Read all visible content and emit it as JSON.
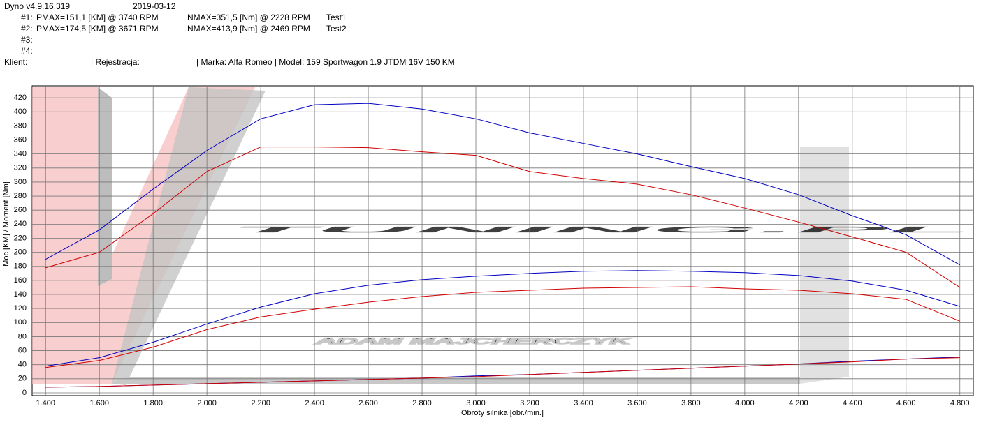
{
  "header": {
    "app": "Dyno v4.9.16.319",
    "date": "2019-03-12",
    "runs": [
      {
        "id": "#1:",
        "pmax": "PMAX=151,1 [KM] @ 3740 RPM",
        "nmax": "NMAX=351,5 [Nm] @ 2228 RPM",
        "test": "Test1"
      },
      {
        "id": "#2:",
        "pmax": "PMAX=174,5 [KM] @ 3671 RPM",
        "nmax": "NMAX=413,9 [Nm] @ 2469 RPM",
        "test": "Test2"
      },
      {
        "id": "#3:"
      },
      {
        "id": "#4:"
      }
    ],
    "client": "Klient:",
    "registration": "| Rejestracja:",
    "vehicle": "| Marka: Alfa Romeo | Model: 159 Sportwagon 1.9 JTDM 16V 150 KM"
  },
  "chart_data": {
    "type": "line",
    "x_label": "Obroty silnika [obr./min.]",
    "y_label": "Moc [KM] / Moment [Nm]",
    "watermark": {
      "logo": "TUNING.PL",
      "name": "ADAM MAJCHERCZYK"
    },
    "grid": true,
    "xlim": [
      1350,
      4850
    ],
    "ylim": [
      -4,
      437
    ],
    "xticks": [
      {
        "value": 1400,
        "label": "1.400"
      },
      {
        "value": 1600,
        "label": "1.600"
      },
      {
        "value": 1800,
        "label": "1.800"
      },
      {
        "value": 2000,
        "label": "2.000"
      },
      {
        "value": 2200,
        "label": "2.200"
      },
      {
        "value": 2400,
        "label": "2.400"
      },
      {
        "value": 2600,
        "label": "2.600"
      },
      {
        "value": 2800,
        "label": "2.800"
      },
      {
        "value": 3000,
        "label": "3.000"
      },
      {
        "value": 3200,
        "label": "3.200"
      },
      {
        "value": 3400,
        "label": "3.400"
      },
      {
        "value": 3600,
        "label": "3.600"
      },
      {
        "value": 3800,
        "label": "3.800"
      },
      {
        "value": 4000,
        "label": "4.000"
      },
      {
        "value": 4200,
        "label": "4.200"
      },
      {
        "value": 4400,
        "label": "4.400"
      },
      {
        "value": 4600,
        "label": "4.600"
      },
      {
        "value": 4800,
        "label": "4.800"
      }
    ],
    "yticks": [
      0,
      20,
      40,
      60,
      80,
      100,
      120,
      140,
      160,
      180,
      200,
      220,
      240,
      260,
      280,
      300,
      320,
      340,
      360,
      380,
      400,
      420
    ],
    "x": [
      1400,
      1600,
      1800,
      2000,
      2200,
      2400,
      2600,
      2800,
      3000,
      3200,
      3400,
      3600,
      3800,
      4000,
      4200,
      4400,
      4600,
      4800
    ],
    "series": [
      {
        "color": "#0000c0",
        "values": [
          190,
          232,
          290,
          345,
          390,
          410,
          412,
          404,
          390,
          370,
          355,
          340,
          322,
          305,
          282,
          252,
          225,
          182
        ]
      },
      {
        "color": "#d00000",
        "values": [
          178,
          200,
          255,
          315,
          350,
          350,
          349,
          343,
          338,
          315,
          305,
          297,
          282,
          263,
          243,
          222,
          200,
          150
        ]
      },
      {
        "color": "#0000c0",
        "values": [
          38,
          50,
          72,
          98,
          122,
          141,
          153,
          161,
          166,
          170,
          173,
          174,
          173,
          171,
          167,
          159,
          146,
          123
        ]
      },
      {
        "color": "#d00000",
        "values": [
          36,
          46,
          65,
          90,
          108,
          119,
          129,
          137,
          143,
          146,
          149,
          150,
          151,
          148,
          146,
          141,
          133,
          102
        ]
      },
      {
        "color": "#0000c0",
        "values": [
          8,
          9,
          11,
          13,
          15,
          17,
          19,
          21,
          24,
          26,
          29,
          32,
          35,
          38,
          41,
          45,
          48,
          51
        ]
      },
      {
        "color": "#d00000",
        "values": [
          8,
          9,
          11,
          13,
          15,
          17,
          19,
          21,
          23,
          26,
          29,
          32,
          35,
          38,
          41,
          44,
          48,
          50
        ]
      }
    ]
  }
}
